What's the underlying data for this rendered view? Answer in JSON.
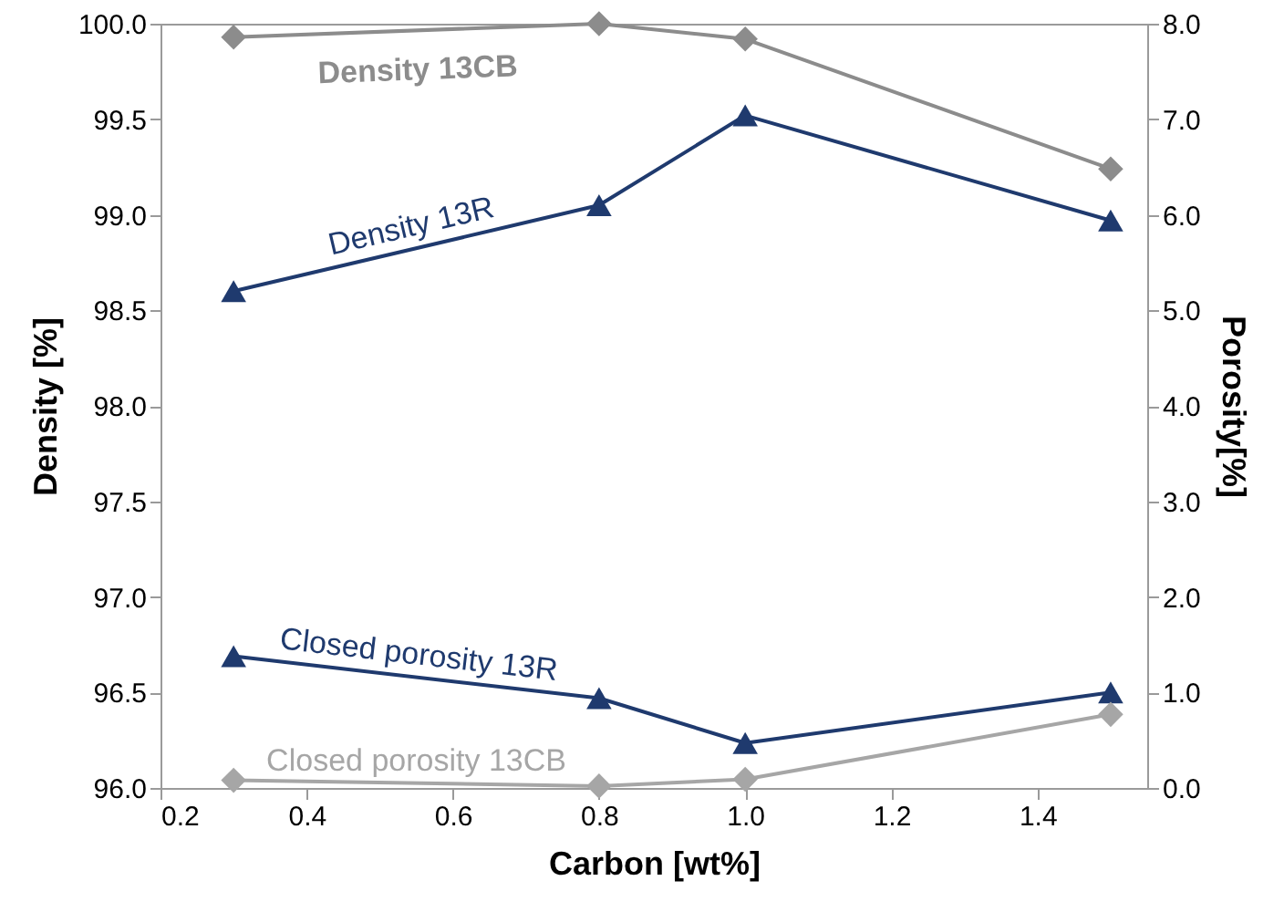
{
  "chart_data": {
    "type": "line",
    "xlabel": "Carbon [wt%]",
    "ylabel": "Density [%]",
    "y2label": "Porosity[%]",
    "x": [
      0.3,
      0.8,
      1.0,
      1.5
    ],
    "xlim": [
      0.2,
      1.55
    ],
    "xticks": [
      {
        "value": 0.2,
        "label": "0.2"
      },
      {
        "value": 0.4,
        "label": "0.4"
      },
      {
        "value": 0.6,
        "label": "0.6"
      },
      {
        "value": 0.8,
        "label": "0.8"
      },
      {
        "value": 1.0,
        "label": "1.0"
      },
      {
        "value": 1.2,
        "label": "1.2"
      },
      {
        "value": 1.4,
        "label": "1.4"
      }
    ],
    "ylim": [
      96,
      100
    ],
    "yticks": [
      {
        "value": 96,
        "label": "96.0"
      },
      {
        "value": 96.5,
        "label": "96.5"
      },
      {
        "value": 97,
        "label": "97.0"
      },
      {
        "value": 97.5,
        "label": "97.5"
      },
      {
        "value": 98,
        "label": "98.0"
      },
      {
        "value": 98.5,
        "label": "98.5"
      },
      {
        "value": 99,
        "label": "99.0"
      },
      {
        "value": 99.5,
        "label": "99.5"
      },
      {
        "value": 100,
        "label": "100.0"
      }
    ],
    "y2lim": [
      0,
      8
    ],
    "y2ticks": [
      {
        "value": 0,
        "label": "0.0"
      },
      {
        "value": 1,
        "label": "1.0"
      },
      {
        "value": 2,
        "label": "2.0"
      },
      {
        "value": 3,
        "label": "3.0"
      },
      {
        "value": 4,
        "label": "4.0"
      },
      {
        "value": 5,
        "label": "5.0"
      },
      {
        "value": 6,
        "label": "6.0"
      },
      {
        "value": 7,
        "label": "7.0"
      },
      {
        "value": 8,
        "label": "8.0"
      }
    ],
    "line_style": "solid",
    "series": [
      {
        "name": "Density 13CB",
        "color": "#8c8c8c",
        "marker": "diamond",
        "values": [
          99.93,
          100.0,
          99.92,
          99.24
        ]
      },
      {
        "name": "Density 13R",
        "color": "#1f3a6e",
        "marker": "triangle",
        "values": [
          98.6,
          99.05,
          99.52,
          98.97
        ]
      },
      {
        "name": "Closed porosity 13R",
        "color": "#1f3a6e",
        "marker": "triangle",
        "axis": "y2",
        "values": [
          1.38,
          0.94,
          0.47,
          1.0
        ]
      },
      {
        "name": "Closed porosity 13CB",
        "color": "#a6a6a6",
        "marker": "diamond",
        "axis": "y2",
        "values": [
          0.08,
          0.02,
          0.09,
          0.77
        ]
      }
    ]
  }
}
